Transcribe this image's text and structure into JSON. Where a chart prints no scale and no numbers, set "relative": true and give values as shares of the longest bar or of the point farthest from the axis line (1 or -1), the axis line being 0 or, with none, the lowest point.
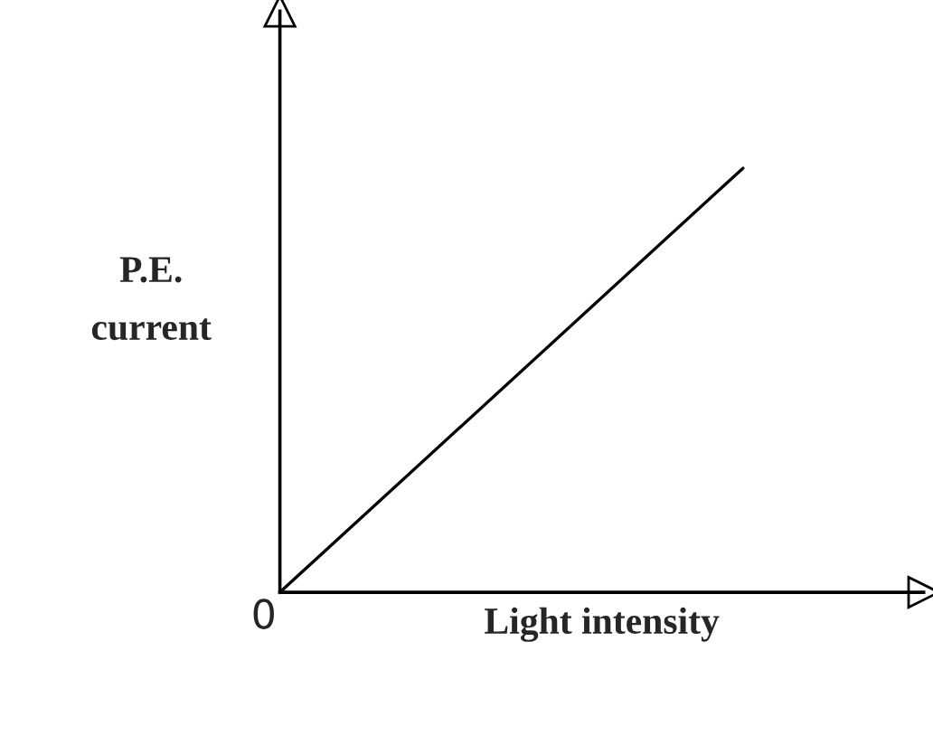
{
  "chart_data": {
    "type": "line",
    "relative": true,
    "xlabel": "Light intensity",
    "ylabel": "P.E.\ncurrent",
    "categories": [
      null,
      null
    ],
    "series": [
      {
        "color": "#000000",
        "values": [
          0,
          1
        ]
      }
    ],
    "annotations": [
      "0"
    ],
    "grid": false,
    "legend": false,
    "marker": "none",
    "line_style": "solid",
    "tick_labels": false
  }
}
